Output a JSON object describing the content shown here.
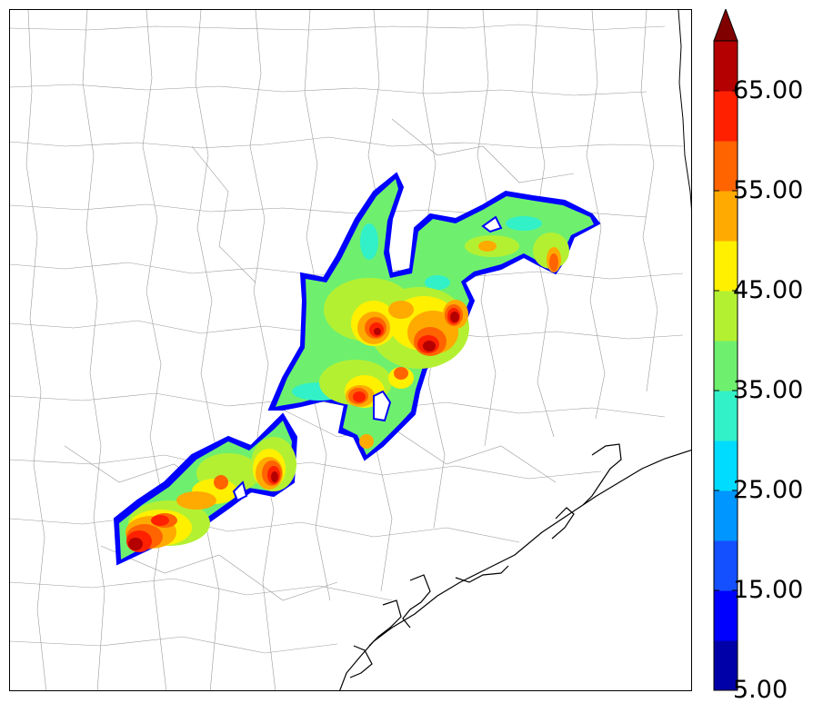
{
  "map": {
    "title": "",
    "field": "reflectivity",
    "region": "southeast-texas",
    "county_line_color": "#888888",
    "coast_color": "#000000"
  },
  "colorbar": {
    "extend": "max",
    "levels": [
      5,
      10,
      15,
      20,
      25,
      30,
      35,
      40,
      45,
      50,
      55,
      60,
      65,
      70
    ],
    "colors": [
      "#0000a8",
      "#0000ff",
      "#1450ff",
      "#0096ff",
      "#00dcff",
      "#32f0c8",
      "#6ef06e",
      "#b4f032",
      "#fff000",
      "#ffaa00",
      "#ff6400",
      "#ff2000",
      "#b40000"
    ],
    "extend_color": "#800000",
    "tick_labels": [
      "5.00",
      "15.00",
      "25.00",
      "35.00",
      "45.00",
      "55.00",
      "65.00"
    ]
  }
}
